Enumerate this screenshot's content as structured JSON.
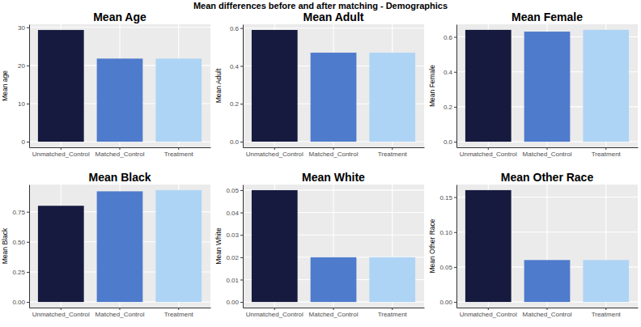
{
  "title": "Mean differences before and after matching - Demographics",
  "chart_data": [
    {
      "type": "bar",
      "title": "Mean Age",
      "ylabel": "Mean age",
      "categories": [
        "Unmatched_Control",
        "Matched_Control",
        "Treatment"
      ],
      "values": [
        29.3,
        21.8,
        21.8
      ],
      "colors": [
        "#161a3f",
        "#4e7bcc",
        "#aed4f5"
      ],
      "ylim": [
        -1.47,
        30.8
      ],
      "yticks": [
        0,
        10,
        20,
        30
      ],
      "grid": true
    },
    {
      "type": "bar",
      "title": "Mean Adult",
      "ylabel": "Mean Adult",
      "categories": [
        "Unmatched_Control",
        "Matched_Control",
        "Treatment"
      ],
      "values": [
        0.59,
        0.47,
        0.47
      ],
      "colors": [
        "#161a3f",
        "#4e7bcc",
        "#aed4f5"
      ],
      "ylim": [
        -0.03,
        0.62
      ],
      "yticks": [
        {
          "value": 0,
          "label": "0.0"
        },
        0.2,
        0.4,
        0.6
      ],
      "grid": true
    },
    {
      "type": "bar",
      "title": "Mean Female",
      "ylabel": "Mean Female",
      "categories": [
        "Unmatched_Control",
        "Matched_Control",
        "Treatment"
      ],
      "values": [
        0.64,
        0.63,
        0.64
      ],
      "colors": [
        "#161a3f",
        "#4e7bcc",
        "#aed4f5"
      ],
      "ylim": [
        -0.032,
        0.672
      ],
      "yticks": [
        {
          "value": 0,
          "label": "0.0"
        },
        0.2,
        0.4,
        0.6
      ],
      "grid": true
    },
    {
      "type": "bar",
      "title": "Mean Black",
      "ylabel": "Mean Black",
      "categories": [
        "Unmatched_Control",
        "Matched_Control",
        "Treatment"
      ],
      "values": [
        0.8,
        0.92,
        0.93
      ],
      "colors": [
        "#161a3f",
        "#4e7bcc",
        "#aed4f5"
      ],
      "ylim": [
        -0.0465,
        0.9765
      ],
      "yticks": [
        {
          "value": 0,
          "label": "0.00"
        },
        0.25,
        {
          "value": 0.5,
          "label": "0.50"
        },
        0.75
      ],
      "grid": true
    },
    {
      "type": "bar",
      "title": "Mean White",
      "ylabel": "Mean White",
      "categories": [
        "Unmatched_Control",
        "Matched_Control",
        "Treatment"
      ],
      "values": [
        0.05,
        0.02,
        0.02
      ],
      "colors": [
        "#161a3f",
        "#4e7bcc",
        "#aed4f5"
      ],
      "ylim": [
        -0.0025,
        0.0525
      ],
      "yticks": [
        {
          "value": 0,
          "label": "0.00"
        },
        0.01,
        0.02,
        0.03,
        0.04,
        0.05
      ],
      "grid": true
    },
    {
      "type": "bar",
      "title": "Mean Other Race",
      "ylabel": "Mean Other Race",
      "categories": [
        "Unmatched_Control",
        "Matched_Control",
        "Treatment"
      ],
      "values": [
        0.16,
        0.06,
        0.06
      ],
      "colors": [
        "#161a3f",
        "#4e7bcc",
        "#aed4f5"
      ],
      "ylim": [
        -0.008,
        0.168
      ],
      "yticks": [
        {
          "value": 0,
          "label": "0.00"
        },
        0.05,
        {
          "value": 0.1,
          "label": "0.10"
        },
        0.15
      ],
      "grid": true
    }
  ]
}
